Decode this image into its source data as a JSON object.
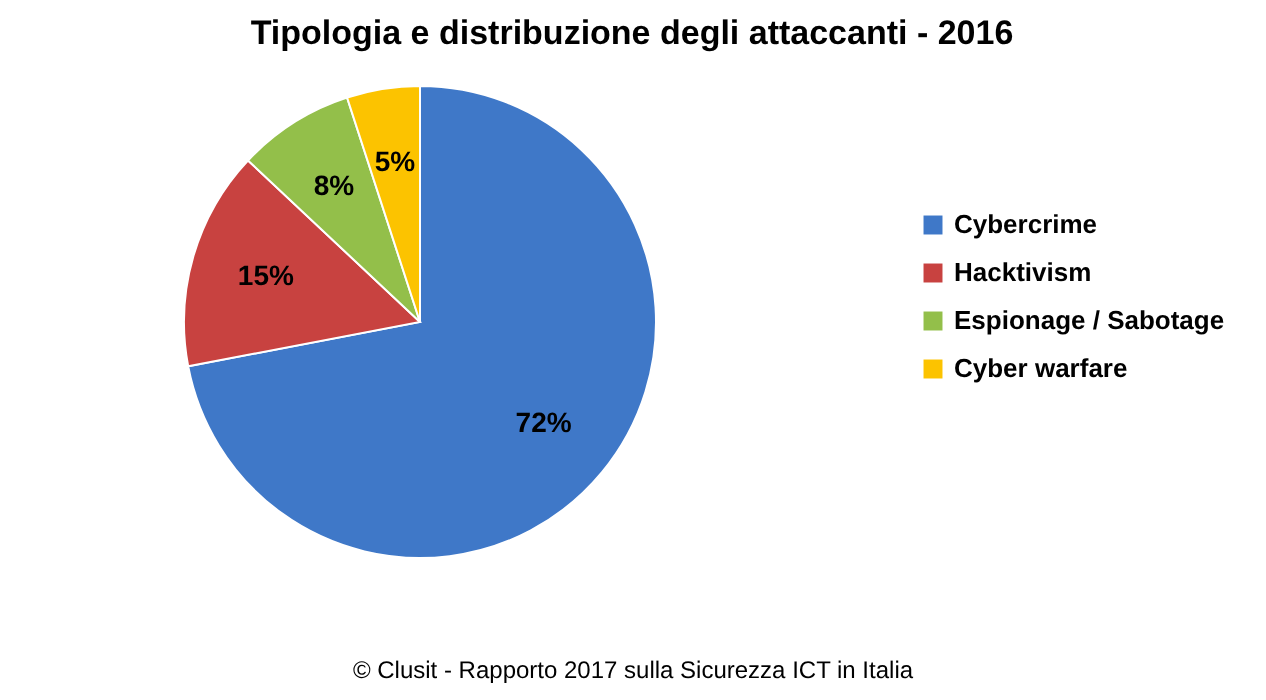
{
  "chart_data": {
    "type": "pie",
    "title": "Tipologia e distribuzione degli attaccanti -  2016",
    "categories": [
      "Cybercrime",
      "Hacktivism",
      "Espionage / Sabotage",
      "Cyber warfare"
    ],
    "values": [
      72,
      15,
      8,
      5
    ],
    "colors": [
      "#3f78c8",
      "#c84240",
      "#93bf4a",
      "#fcc300"
    ],
    "value_labels": [
      "72%",
      "15%",
      "8%",
      "5%"
    ],
    "legend": "right",
    "annotations": [
      "© Clusit - Rapporto 2017 sulla Sicurezza ICT in Italia"
    ]
  }
}
